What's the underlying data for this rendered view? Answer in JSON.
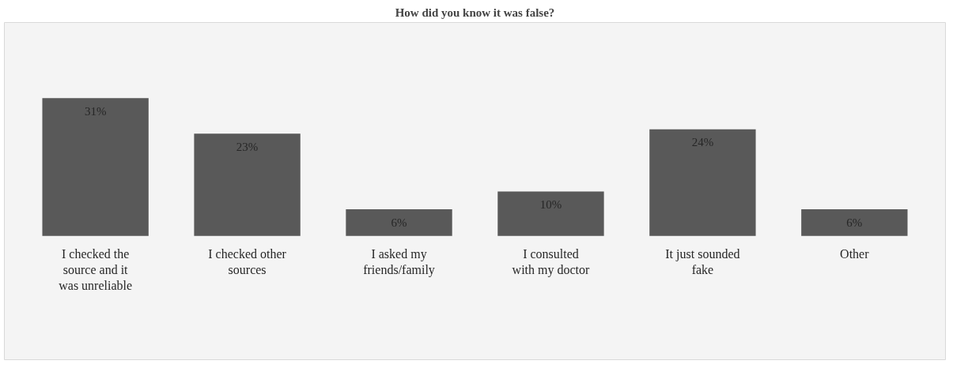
{
  "chart_data": {
    "type": "bar",
    "title": "How did you know it was false?",
    "categories": [
      "I checked the source and it was unreliable",
      "I checked other sources",
      "I asked my friends/family",
      "I consulted with my doctor",
      "It just sounded fake",
      "Other"
    ],
    "values": [
      31,
      23,
      6,
      10,
      24,
      6
    ],
    "value_labels": [
      "31%",
      "23%",
      "6%",
      "10%",
      "24%",
      "6%"
    ],
    "color": "#595959",
    "grid": false
  }
}
